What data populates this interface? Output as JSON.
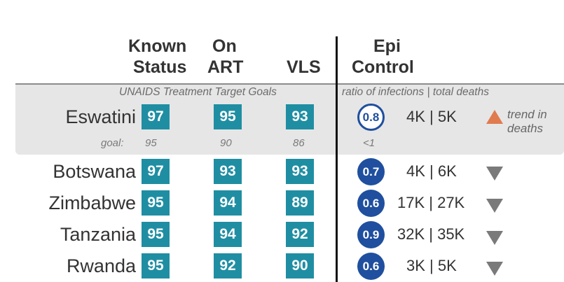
{
  "colors": {
    "cell": "#1f8ea3",
    "epi_circle": "#1f4f9e",
    "trend_up": "#e07b4f",
    "trend_down": "#7a7a7a",
    "highlight_band": "#e6e6e6"
  },
  "chart_data": {
    "type": "table",
    "headers": {
      "known_status": [
        "Known",
        "Status"
      ],
      "on_art": [
        "On",
        "ART"
      ],
      "vls": "VLS",
      "epi_control": [
        "Epi",
        "Control"
      ]
    },
    "subheaders": {
      "targets": "UNAIDS Treatment Target Goals",
      "epi": "ratio of infections | total deaths"
    },
    "goals": {
      "label": "goal:",
      "known_status": "95",
      "on_art": "90",
      "vls": "86",
      "epi": "<1"
    },
    "rows": [
      {
        "country": "Eswatini",
        "known_status": "97",
        "on_art": "95",
        "vls": "93",
        "ratio": "0.8",
        "epi_control_achieved": true,
        "infections_deaths": "4K | 5K",
        "trend": "up",
        "trend_label": [
          "trend in",
          "deaths"
        ]
      },
      {
        "country": "Botswana",
        "known_status": "97",
        "on_art": "93",
        "vls": "93",
        "ratio": "0.7",
        "epi_control_achieved": false,
        "infections_deaths": "4K | 6K",
        "trend": "down"
      },
      {
        "country": "Zimbabwe",
        "known_status": "95",
        "on_art": "94",
        "vls": "89",
        "ratio": "0.6",
        "epi_control_achieved": false,
        "infections_deaths": "17K | 27K",
        "trend": "down"
      },
      {
        "country": "Tanzania",
        "known_status": "95",
        "on_art": "94",
        "vls": "92",
        "ratio": "0.9",
        "epi_control_achieved": false,
        "infections_deaths": "32K | 35K",
        "trend": "down"
      },
      {
        "country": "Rwanda",
        "known_status": "95",
        "on_art": "92",
        "vls": "90",
        "ratio": "0.6",
        "epi_control_achieved": false,
        "infections_deaths": "3K | 5K",
        "trend": "down"
      }
    ]
  }
}
